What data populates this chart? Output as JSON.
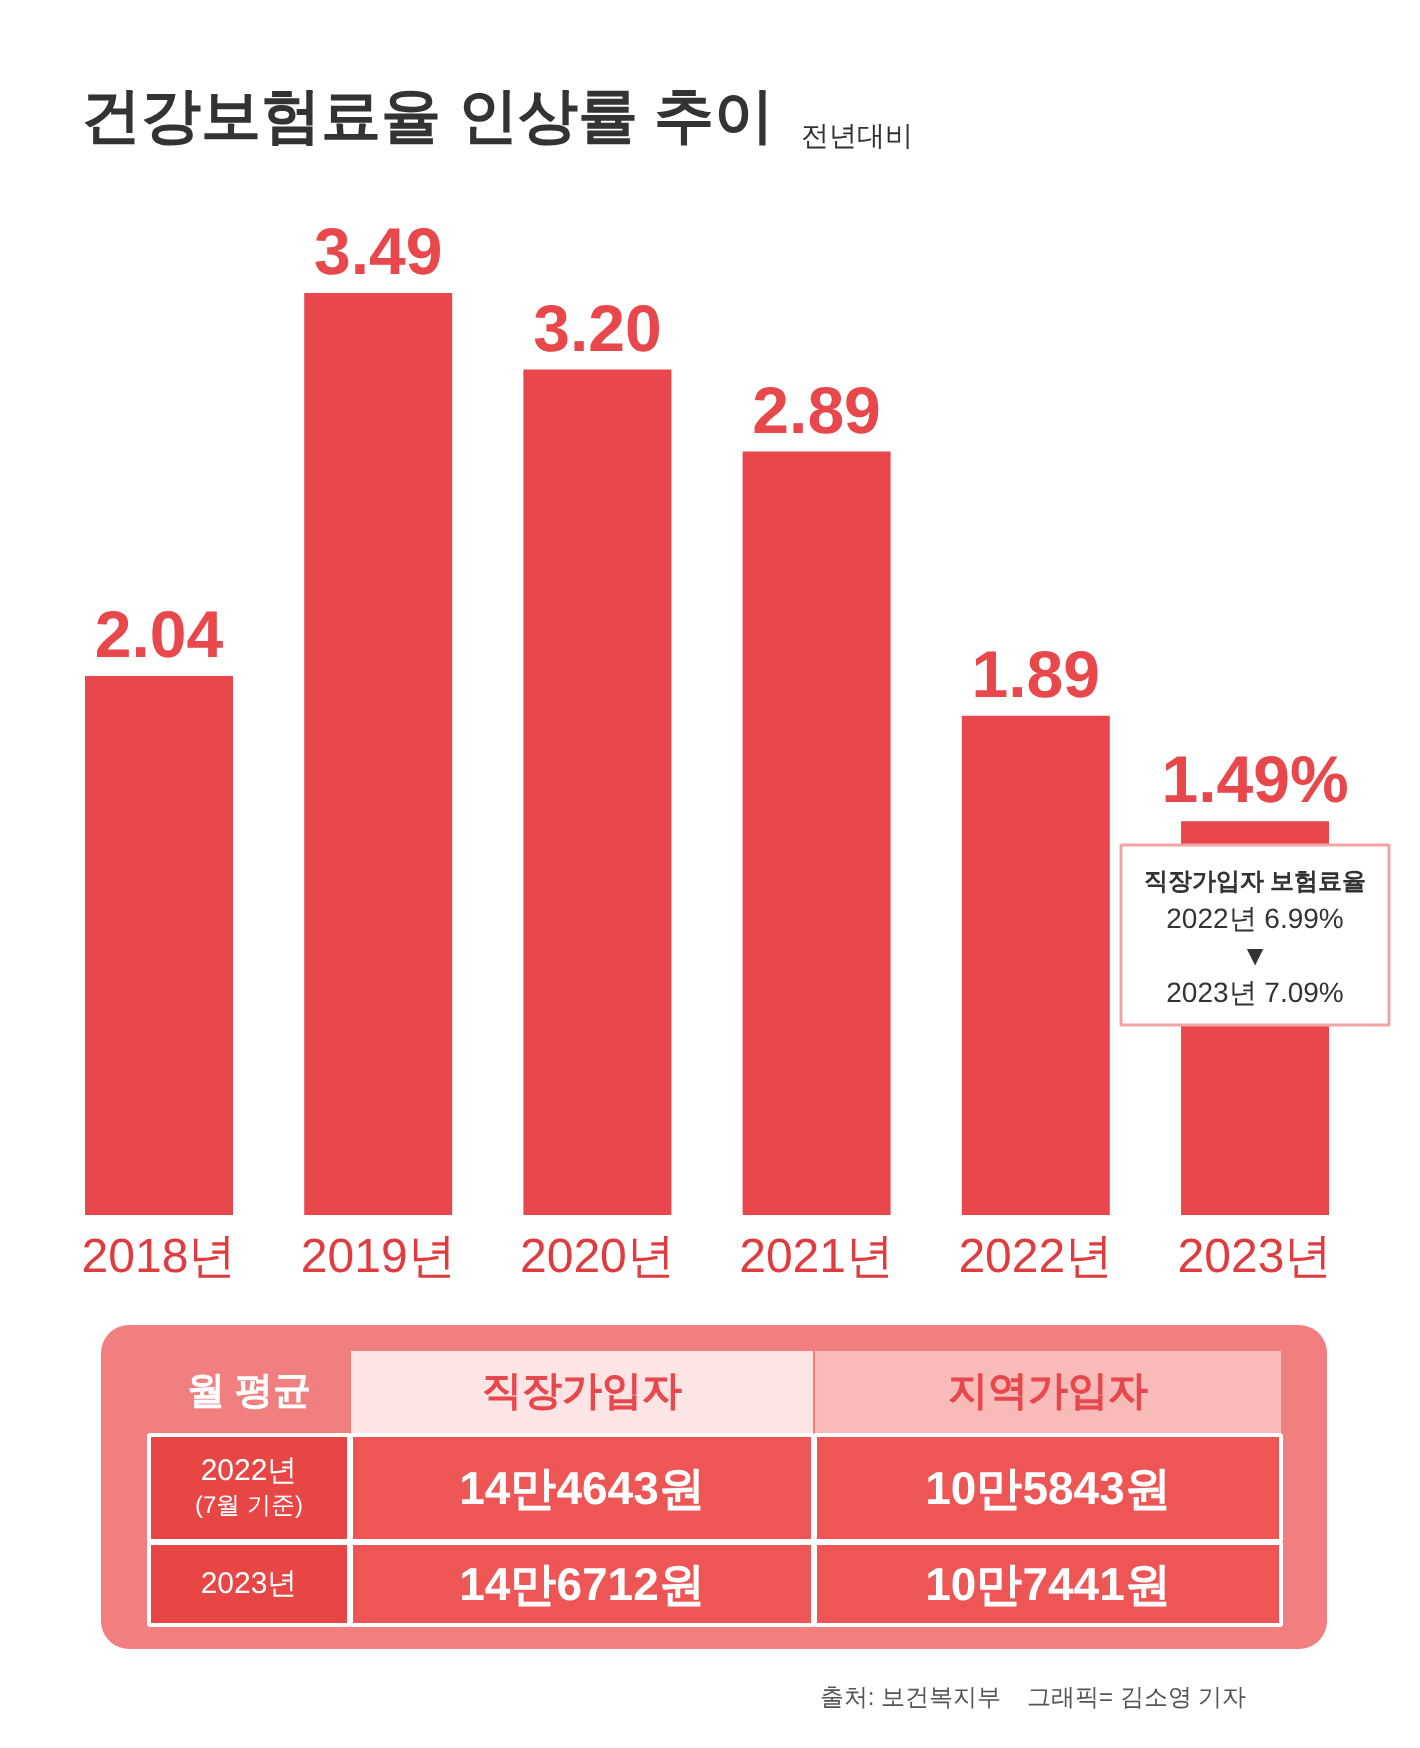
{
  "chart_data": {
    "type": "bar",
    "title": "건강보험료율 인상률 추이",
    "subtitle": "전년대비",
    "categories": [
      "2018년",
      "2019년",
      "2020년",
      "2021년",
      "2022년",
      "2023년"
    ],
    "values": [
      2.04,
      3.49,
      3.2,
      2.89,
      1.89,
      1.49
    ],
    "color": "#e8484b",
    "value_labels": [
      "2.04",
      "3.49",
      "3.20",
      "2.89",
      "1.89",
      "1.49%"
    ],
    "tick_labels": "x",
    "annotations": [
      "직장가입자 보험료율\n2022년 6.99%\n▼\n2023년 7.09%",
      "월 평균",
      "직장가입자",
      "지역가입자",
      "2022년\n(7월 기준)",
      "14만4643원",
      "10만5843원",
      "2023년",
      "14만6712원",
      "10만7441원",
      "출처: 보건복지부",
      "그래픽= 김소영 기자"
    ]
  }
}
